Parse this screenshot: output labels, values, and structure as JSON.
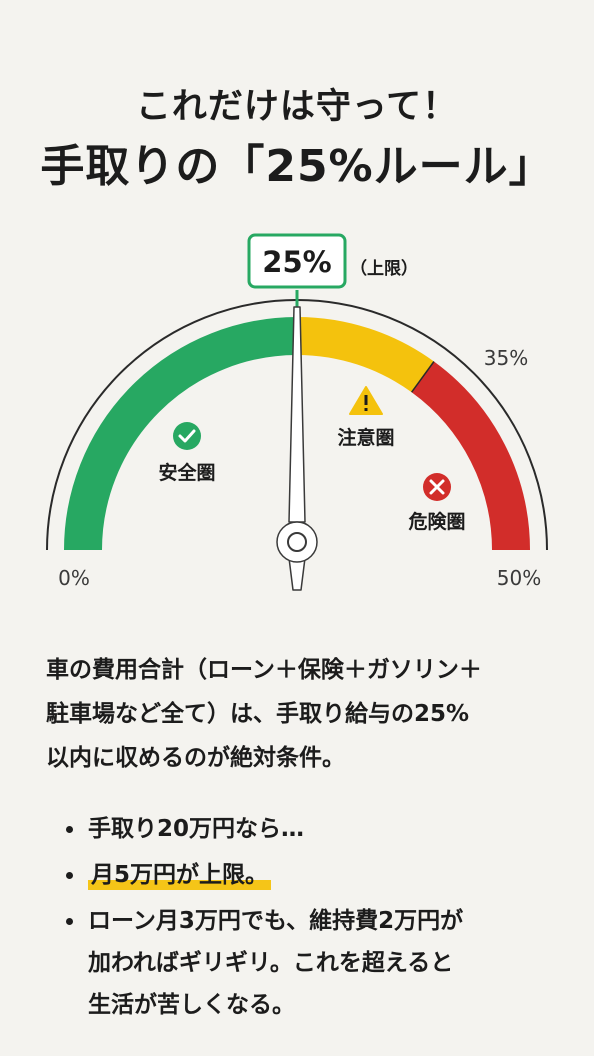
{
  "title": {
    "line1": "これだけは守って！",
    "line2": "手取りの「25%ルール」"
  },
  "gauge": {
    "limit_label": "25%",
    "limit_note": "（上限）",
    "marker_35": "35%",
    "min_label": "0%",
    "max_label": "50%",
    "needle_value_percent": 25,
    "scale_max_percent": 50,
    "zones": [
      {
        "name": "安全圏",
        "from_percent": 0,
        "to_percent": 25,
        "color": "#27a862",
        "icon": "check-icon"
      },
      {
        "name": "注意圏",
        "from_percent": 25,
        "to_percent": 35,
        "color": "#f4c20d",
        "icon": "warning-icon"
      },
      {
        "name": "危険圏",
        "from_percent": 35,
        "to_percent": 50,
        "color": "#d22d2a",
        "icon": "cross-icon"
      }
    ]
  },
  "description": {
    "lines": [
      "車の費用合計（ローン＋保険＋ガソリン＋",
      "駐車場など全て）は、手取り給与の25%",
      "以内に収めるのが絶対条件。"
    ]
  },
  "bullets": [
    {
      "lines": [
        "手取り20万円なら…"
      ]
    },
    {
      "lines": [
        "月5万円が上限。"
      ]
    },
    {
      "lines": [
        "ローン月3万円でも、維持費2万円が",
        "加わればギリギリ。これを超えると",
        "生活が苦しくなる。"
      ]
    }
  ]
}
